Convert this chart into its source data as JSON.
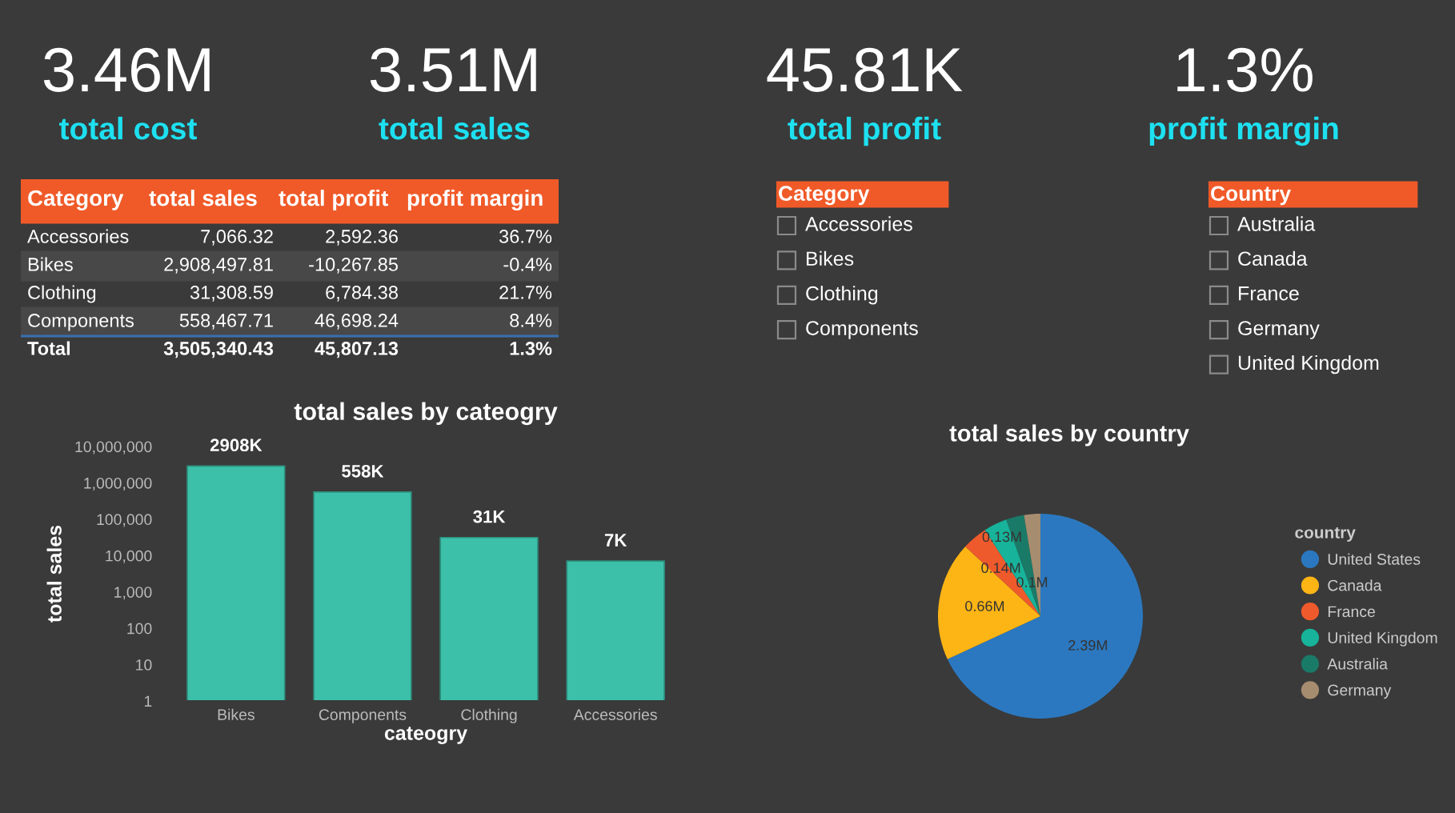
{
  "chart_data": [
    {
      "type": "other",
      "annotations": [
        "3.46M",
        "total cost",
        "3.51M",
        "total sales",
        "45.81K",
        "total profit",
        "1.3%",
        "profit margin"
      ]
    },
    {
      "type": "other",
      "categories": [
        "Category",
        "total sales",
        "total profit",
        "profit margin"
      ],
      "y_categories": [
        "Accessories",
        "Bikes",
        "Clothing",
        "Components",
        "Total"
      ],
      "cell_labels": [
        [
          "7,066.32",
          "2,592.36",
          "36.7%"
        ],
        [
          "2,908,497.81",
          "-10,267.85",
          "-0.4%"
        ],
        [
          "31,308.59",
          "6,784.38",
          "21.7%"
        ],
        [
          "558,467.71",
          "46,698.24",
          "8.4%"
        ],
        [
          "3,505,340.43",
          "45,807.13",
          "1.3%"
        ]
      ],
      "color": "#f05a28"
    },
    {
      "type": "other",
      "title": "Category",
      "categories": [
        "Accessories",
        "Bikes",
        "Clothing",
        "Components"
      ],
      "color": "#f05a28"
    },
    {
      "type": "other",
      "title": "Country",
      "categories": [
        "Australia",
        "Canada",
        "France",
        "Germany",
        "United Kingdom"
      ],
      "color": "#f05a28"
    },
    {
      "type": "bar",
      "title": "total sales by cateogry",
      "xlabel": "cateogry",
      "ylabel": "total sales",
      "categories": [
        "Bikes",
        "Components",
        "Clothing",
        "Accessories"
      ],
      "values": [
        2908497.81,
        558467.71,
        31308.59,
        7066.32
      ],
      "value_labels": [
        "2908K",
        "558K",
        "31K",
        "7K"
      ],
      "color": "#3cc0a9",
      "log": true,
      "ylim": [
        1,
        10000000
      ],
      "yticks": [
        {
          "value": 1,
          "label": "1"
        },
        {
          "value": 10,
          "label": "10"
        },
        {
          "value": 100,
          "label": "100"
        },
        {
          "value": 1000,
          "label": "1,000"
        },
        {
          "value": 10000,
          "label": "10,000"
        },
        {
          "value": 100000,
          "label": "100,000"
        },
        {
          "value": 1000000,
          "label": "1,000,000"
        },
        {
          "value": 10000000,
          "label": "10,000,000"
        }
      ]
    },
    {
      "type": "pie",
      "title": "total sales by country",
      "legend_title": "country",
      "legend": "right",
      "categories": [
        "United States",
        "Canada",
        "France",
        "United Kingdom",
        "Australia",
        "Germany"
      ],
      "values": [
        2.39,
        0.66,
        0.14,
        0.13,
        0.1,
        0.09
      ],
      "value_labels": [
        "2.39M",
        "0.66M",
        "0.14M",
        "0.13M",
        "0.1M",
        null
      ],
      "colors": [
        "#2b78c0",
        "#fdb515",
        "#ef5a2c",
        "#17b39a",
        "#1a7a68",
        "#a78d6f"
      ]
    }
  ]
}
